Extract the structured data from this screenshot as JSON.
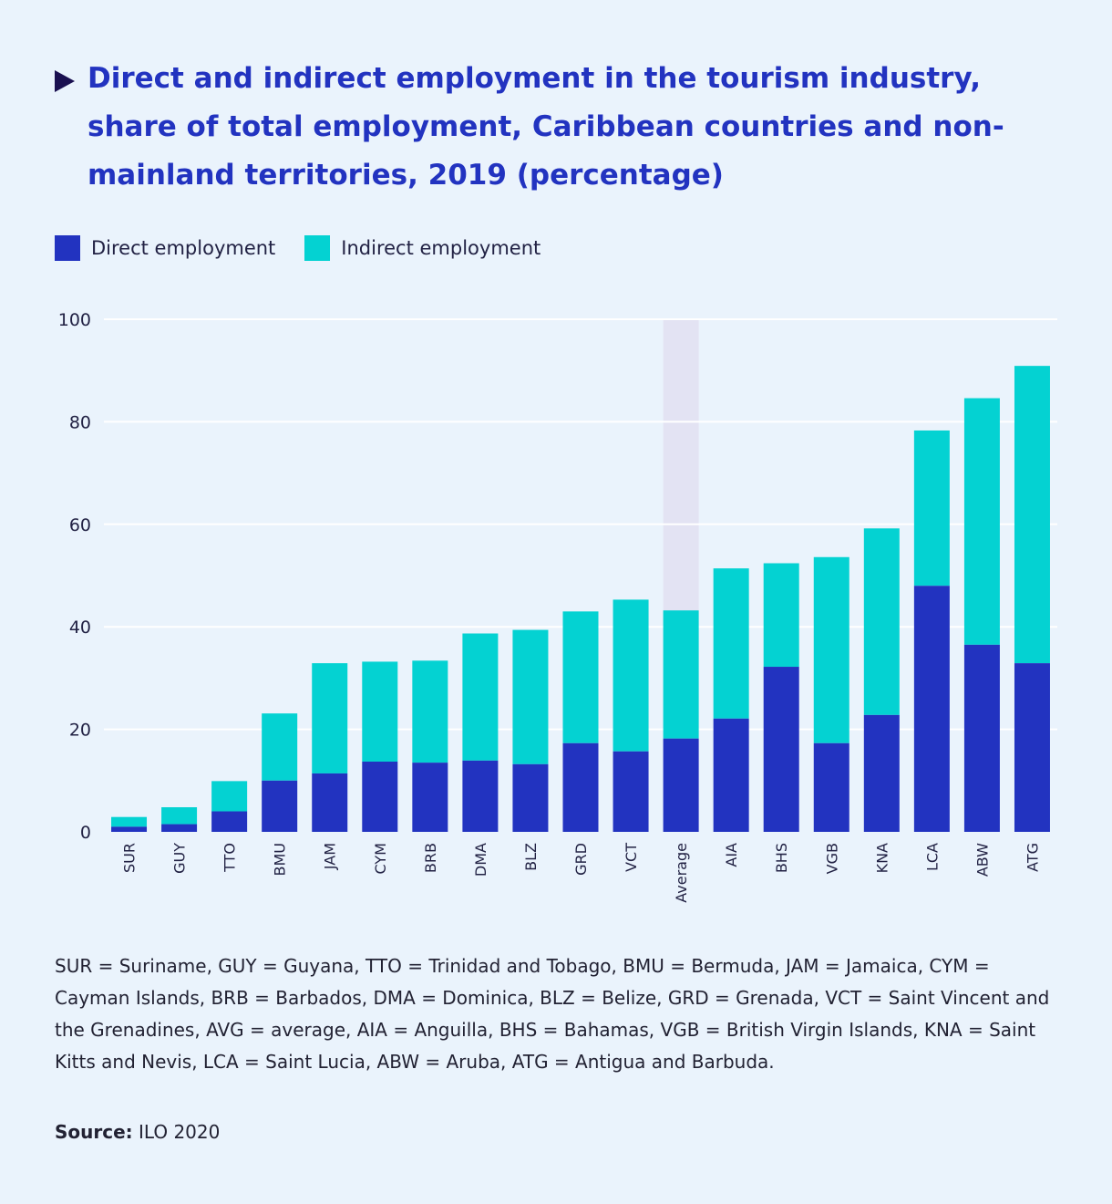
{
  "title": "Direct and indirect employment in the tourism industry, share of total employment, Caribbean countries and non-mainland territories, 2019 (percentage)",
  "notes": "SUR = Suriname, GUY = Guyana, TTO = Trinidad and Tobago, BMU = Bermuda, JAM = Jamaica, CYM = Cayman Islands, BRB = Barbados, DMA = Dominica, BLZ = Belize, GRD = Grenada, VCT = Saint Vincent and the Grenadines, AVG = average, AIA = Anguilla, BHS = Bahamas, VGB = British Virgin Islands, KNA = Saint Kitts and Nevis, LCA = Saint Lucia, ABW = Aruba, ATG = Antigua and Barbuda.",
  "source": {
    "label": "Source:",
    "text": " ILO 2020"
  },
  "colors": {
    "background": "#eaf3fc",
    "direct": "#2233c0",
    "indirect": "#04d2d2",
    "highlight": "#e3e3f3",
    "grid": "#ffffff"
  },
  "chart_data": {
    "type": "bar",
    "stacked": true,
    "title": "Direct and indirect employment in the tourism industry, share of total employment, Caribbean countries and non-mainland territories, 2019 (percentage)",
    "xlabel": "",
    "ylabel": "",
    "ylim": [
      0,
      100
    ],
    "yticks": [
      0,
      20,
      40,
      60,
      80,
      100
    ],
    "grid": true,
    "legend_position": "top-left",
    "highlight_category": "Average",
    "categories": [
      "SUR",
      "GUY",
      "TTO",
      "BMU",
      "JAM",
      "CYM",
      "BRB",
      "DMA",
      "BLZ",
      "GRD",
      "VCT",
      "Average",
      "AIA",
      "BHS",
      "VGB",
      "KNA",
      "LCA",
      "ABW",
      "ATG"
    ],
    "series": [
      {
        "name": "Direct employment",
        "values": [
          1.0,
          1.5,
          4.0,
          10.0,
          11.4,
          13.7,
          13.5,
          13.9,
          13.2,
          17.3,
          15.7,
          18.2,
          22.1,
          32.2,
          17.3,
          22.8,
          48.0,
          36.5,
          32.9
        ]
      },
      {
        "name": "Indirect employment",
        "values": [
          1.9,
          3.3,
          5.9,
          13.1,
          21.5,
          19.5,
          19.9,
          24.8,
          26.2,
          25.7,
          29.6,
          25.0,
          29.3,
          20.2,
          36.3,
          36.4,
          30.3,
          48.1,
          58.0
        ]
      }
    ]
  }
}
